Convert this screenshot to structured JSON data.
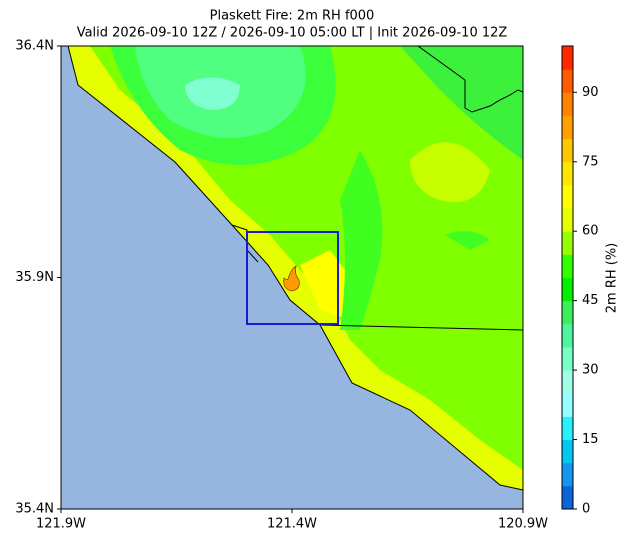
{
  "map": {
    "title": "Plaskett Fire: 2m RH f000",
    "subtitle": "Valid 2026-09-10 12Z / 2026-09-10 05:00 LT | Init 2026-09-10 12Z",
    "xlim": [
      -121.9,
      -120.9
    ],
    "ylim": [
      35.4,
      36.4
    ],
    "xticks": [
      {
        "value": -121.9,
        "label": "121.9W"
      },
      {
        "value": -121.4,
        "label": "121.4W"
      },
      {
        "value": -120.9,
        "label": "120.9W"
      }
    ],
    "yticks": [
      {
        "value": 35.4,
        "label": "35.4N"
      },
      {
        "value": 35.9,
        "label": "35.9N"
      },
      {
        "value": 36.4,
        "label": "36.4N"
      }
    ],
    "colorbar": {
      "label": "2m RH (%)",
      "lim": [
        0,
        100
      ],
      "ticks": [
        0,
        15,
        30,
        45,
        60,
        75,
        90
      ],
      "colors": [
        "#0a64dc",
        "#1496f0",
        "#00c8f0",
        "#28f0ff",
        "#96ffff",
        "#a0ffe6",
        "#78ffc8",
        "#50f5a0",
        "#3cf05a",
        "#00f000",
        "#32ff00",
        "#96ff00",
        "#e6ff00",
        "#ffff00",
        "#ffe600",
        "#ffc800",
        "#ffa000",
        "#ff8200",
        "#ff5a00",
        "#ff2800"
      ]
    }
  }
}
